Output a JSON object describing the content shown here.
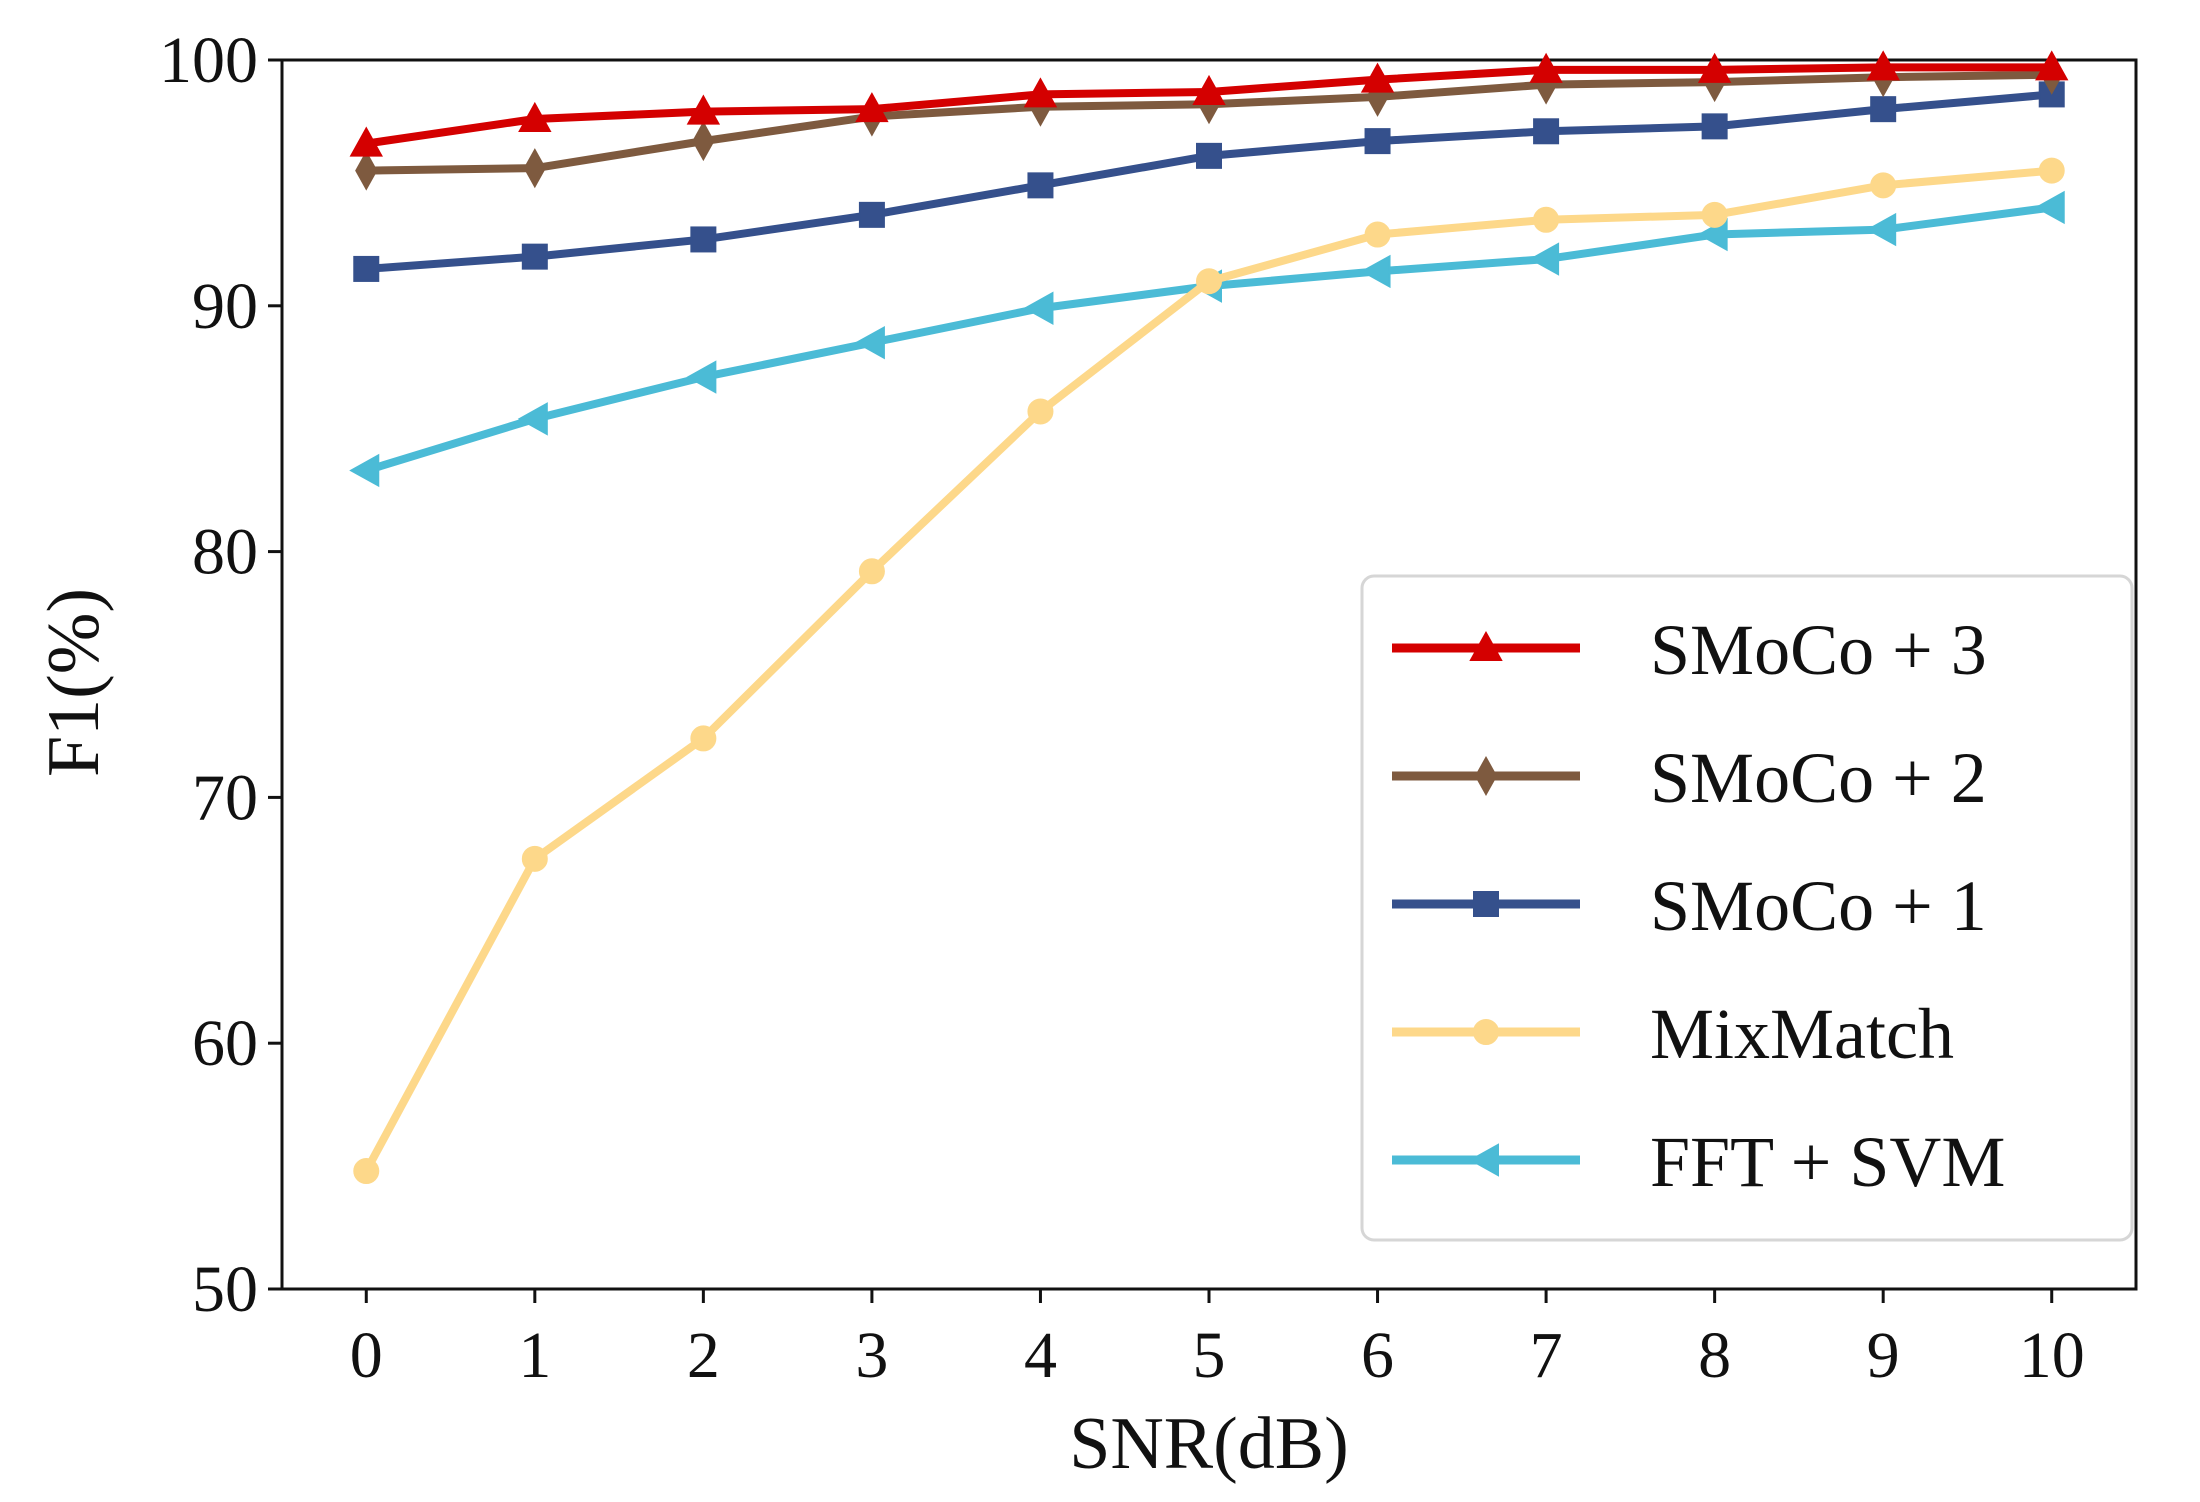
{
  "chart_data": {
    "type": "line",
    "title": "",
    "xlabel": "SNR(dB)",
    "ylabel": "F1(%)",
    "xlim": [
      -0.5,
      10.5
    ],
    "ylim": [
      50,
      100
    ],
    "xticks": [
      "0",
      "1",
      "2",
      "3",
      "4",
      "5",
      "6",
      "7",
      "8",
      "9",
      "10"
    ],
    "yticks": [
      "50",
      "60",
      "70",
      "80",
      "90",
      "100"
    ],
    "grid": false,
    "legend_position": "lower-right",
    "x": [
      0,
      1,
      2,
      3,
      4,
      5,
      6,
      7,
      8,
      9,
      10
    ],
    "series": [
      {
        "name": "SMoCo + 3",
        "color": "#d40000",
        "marker": "triangle-up",
        "values": [
          96.6,
          97.6,
          97.9,
          98.0,
          98.6,
          98.7,
          99.2,
          99.6,
          99.6,
          99.7,
          99.7
        ]
      },
      {
        "name": "SMoCo + 2",
        "color": "#7e5a3f",
        "marker": "thin-diamond",
        "values": [
          95.5,
          95.6,
          96.7,
          97.7,
          98.1,
          98.2,
          98.5,
          99.0,
          99.1,
          99.3,
          99.4
        ]
      },
      {
        "name": "SMoCo + 1",
        "color": "#35508c",
        "marker": "square",
        "values": [
          91.5,
          92.0,
          92.7,
          93.7,
          94.9,
          96.1,
          96.7,
          97.1,
          97.3,
          98.0,
          98.6
        ]
      },
      {
        "name": "MixMatch",
        "color": "#fdd88a",
        "marker": "circle",
        "values": [
          54.8,
          67.5,
          72.4,
          79.2,
          85.7,
          91.0,
          92.9,
          93.5,
          93.7,
          94.9,
          95.5
        ]
      },
      {
        "name": "FFT + SVM",
        "color": "#4bbbd6",
        "marker": "triangle-left",
        "values": [
          83.3,
          85.4,
          87.1,
          88.5,
          89.9,
          90.8,
          91.4,
          91.9,
          92.9,
          93.1,
          94.0
        ]
      }
    ]
  }
}
